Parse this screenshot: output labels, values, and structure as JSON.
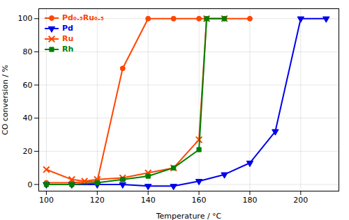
{
  "chart_data": {
    "type": "line",
    "xlabel": "Temperature / °C",
    "ylabel": "CO conversion / %",
    "series": [
      {
        "name": "Pd₀.₅Ru₀.₅",
        "color": "#FF4500",
        "marker": "circle",
        "x": [
          100,
          110,
          120,
          130,
          140,
          150,
          160,
          170,
          180
        ],
        "values": [
          1,
          1,
          2,
          70,
          100,
          100,
          100,
          100,
          100
        ]
      },
      {
        "name": "Pd",
        "color": "#0000EE",
        "marker": "triangle-down",
        "x": [
          100,
          110,
          120,
          130,
          140,
          150,
          160,
          170,
          180,
          190,
          200,
          210
        ],
        "values": [
          0,
          0,
          0,
          0,
          -1,
          -1,
          2,
          6,
          13,
          32,
          100,
          100
        ]
      },
      {
        "name": "Ru",
        "color": "#FF4500",
        "marker": "x",
        "x": [
          100,
          110,
          115,
          120,
          130,
          140,
          150,
          160,
          163,
          170
        ],
        "values": [
          9,
          3,
          2,
          3,
          4,
          7,
          10,
          27,
          100,
          100
        ]
      },
      {
        "name": "Rh",
        "color": "#008000",
        "marker": "square",
        "x": [
          100,
          110,
          120,
          130,
          140,
          150,
          160,
          163,
          170
        ],
        "values": [
          0,
          0,
          1,
          3,
          5,
          10,
          21,
          100,
          100
        ]
      }
    ],
    "xlim": [
      97,
      215
    ],
    "ylim": [
      -4,
      106
    ],
    "xticks": [
      100,
      120,
      140,
      160,
      180,
      200
    ],
    "yticks": [
      0,
      20,
      40,
      60,
      80,
      100
    ],
    "grid": true,
    "legend": "upper left"
  }
}
